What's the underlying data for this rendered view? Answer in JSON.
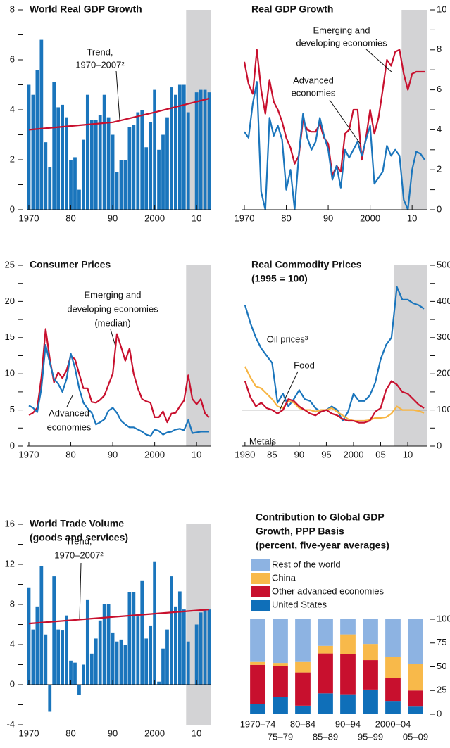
{
  "chart_data": [
    {
      "type": "bar",
      "title": [
        "World Real GDP Growth"
      ],
      "yaxis_side": "left",
      "x": [
        1970,
        1971,
        1972,
        1973,
        1974,
        1975,
        1976,
        1977,
        1978,
        1979,
        1980,
        1981,
        1982,
        1983,
        1984,
        1985,
        1986,
        1987,
        1988,
        1989,
        1990,
        1991,
        1992,
        1993,
        1994,
        1995,
        1996,
        1997,
        1998,
        1999,
        2000,
        2001,
        2002,
        2003,
        2004,
        2005,
        2006,
        2007,
        2008,
        2009,
        2010,
        2011,
        2012,
        2013
      ],
      "values": [
        5.0,
        4.6,
        5.6,
        6.8,
        2.7,
        1.7,
        5.1,
        4.1,
        4.2,
        3.7,
        2.0,
        2.1,
        0.8,
        2.8,
        4.6,
        3.6,
        3.6,
        3.8,
        4.6,
        3.7,
        3.0,
        1.5,
        2.0,
        2.0,
        3.3,
        3.4,
        3.9,
        4.0,
        2.5,
        3.5,
        4.8,
        2.4,
        3.0,
        3.7,
        4.9,
        4.6,
        5.0,
        5.0,
        3.9,
        null,
        4.7,
        4.8,
        4.8,
        4.7
      ],
      "color": "#1a75bc",
      "trend": {
        "x": [
          1970,
          1990,
          2000,
          2013
        ],
        "values": [
          3.2,
          3.5,
          3.9,
          4.45
        ],
        "color": "#c8102e"
      },
      "annotations": [
        [
          "Trend,",
          "1970–2007²"
        ]
      ],
      "shade": [
        2007.5,
        2013.5
      ],
      "shade_color": "#d3d3d5",
      "xlim": [
        1969.5,
        2013.5
      ],
      "xticks": [
        1970,
        {
          "value": 1980,
          "label": "80"
        },
        {
          "value": 1990,
          "label": "90"
        },
        2000,
        {
          "value": 2010,
          "label": "10"
        }
      ],
      "ylim": [
        0,
        8
      ],
      "yticks": [
        0,
        2,
        4,
        6,
        8
      ],
      "yminor": [
        1,
        3,
        5,
        7
      ]
    },
    {
      "type": "line",
      "title": [
        "Real GDP Growth"
      ],
      "yaxis_side": "right",
      "x": [
        1970,
        1971,
        1972,
        1973,
        1974,
        1975,
        1976,
        1977,
        1978,
        1979,
        1980,
        1981,
        1982,
        1983,
        1984,
        1985,
        1986,
        1987,
        1988,
        1989,
        1990,
        1991,
        1992,
        1993,
        1994,
        1995,
        1996,
        1997,
        1998,
        1999,
        2000,
        2001,
        2002,
        2003,
        2004,
        2005,
        2006,
        2007,
        2008,
        2009,
        2010,
        2011,
        2012,
        2013
      ],
      "series": [
        {
          "color": "#c8102e",
          "values": [
            7.4,
            6.3,
            5.8,
            8.0,
            6.0,
            4.8,
            6.5,
            5.4,
            5.0,
            4.4,
            3.6,
            3.1,
            2.3,
            2.7,
            4.5,
            4.0,
            3.9,
            3.9,
            4.3,
            3.6,
            3.3,
            1.7,
            2.2,
            1.9,
            3.8,
            4.0,
            5.0,
            5.0,
            2.5,
            3.6,
            5.0,
            3.8,
            4.6,
            6.0,
            7.5,
            7.2,
            7.9,
            8.0,
            6.8,
            6.0,
            6.8,
            6.9,
            6.9,
            6.9
          ]
        },
        {
          "color": "#1a75bc",
          "values": [
            3.9,
            3.6,
            5.3,
            6.4,
            0.9,
            0.0,
            4.6,
            3.7,
            4.2,
            3.5,
            1.0,
            2.0,
            0.0,
            2.8,
            4.8,
            3.6,
            3.0,
            3.4,
            4.6,
            3.7,
            3.0,
            1.5,
            2.2,
            1.1,
            3.0,
            2.6,
            3.0,
            3.4,
            2.7,
            3.5,
            4.2,
            1.3,
            1.6,
            1.9,
            3.2,
            2.7,
            3.0,
            2.7,
            0.5,
            0.0,
            2.0,
            2.9,
            2.8,
            2.5
          ]
        }
      ],
      "annotations": [
        [
          "Emerging and",
          "developing economies"
        ],
        [
          "Advanced",
          "economies"
        ]
      ],
      "shade": [
        2007.5,
        2013.5
      ],
      "shade_color": "#d3d3d5",
      "xlim": [
        1969.5,
        2013.5
      ],
      "xticks": [
        1970,
        {
          "value": 1980,
          "label": "80"
        },
        {
          "value": 1990,
          "label": "90"
        },
        2000,
        {
          "value": 2010,
          "label": "10"
        }
      ],
      "ylim": [
        0,
        10
      ],
      "yticks": [
        0,
        2,
        4,
        6,
        8,
        10
      ],
      "yminor": [
        1,
        3,
        5,
        7,
        9
      ]
    },
    {
      "type": "line",
      "title": [
        "Consumer Prices"
      ],
      "yaxis_side": "left",
      "x": [
        1970,
        1971,
        1972,
        1973,
        1974,
        1975,
        1976,
        1977,
        1978,
        1979,
        1980,
        1981,
        1982,
        1983,
        1984,
        1985,
        1986,
        1987,
        1988,
        1989,
        1990,
        1991,
        1992,
        1993,
        1994,
        1995,
        1996,
        1997,
        1998,
        1999,
        2000,
        2001,
        2002,
        2003,
        2004,
        2005,
        2006,
        2007,
        2008,
        2009,
        2010,
        2011,
        2012,
        2013
      ],
      "series": [
        {
          "color": "#c8102e",
          "values": [
            4.3,
            4.6,
            5.3,
            9.5,
            16.2,
            12.0,
            8.8,
            10.2,
            9.4,
            10.5,
            12.5,
            12.0,
            10.0,
            8.0,
            8.0,
            6.1,
            6.0,
            6.4,
            7.0,
            8.5,
            10.0,
            15.5,
            13.7,
            11.8,
            13.5,
            10.0,
            8.0,
            6.5,
            6.2,
            6.0,
            4.0,
            4.0,
            4.8,
            3.3,
            4.5,
            4.6,
            5.5,
            6.3,
            9.8,
            6.5,
            5.8,
            6.5,
            4.5,
            4.0
          ]
        },
        {
          "color": "#1a75bc",
          "values": [
            5.6,
            5.3,
            4.7,
            8.0,
            14.0,
            11.5,
            9.3,
            8.6,
            7.5,
            9.3,
            12.8,
            10.8,
            8.0,
            6.0,
            5.2,
            4.6,
            3.0,
            3.3,
            3.7,
            4.9,
            5.3,
            4.6,
            3.5,
            3.0,
            2.6,
            2.6,
            2.3,
            2.0,
            1.6,
            1.4,
            2.3,
            2.1,
            1.6,
            1.9,
            2.0,
            2.3,
            2.4,
            2.2,
            3.6,
            1.8,
            1.9,
            2.0,
            2.0,
            2.0
          ]
        }
      ],
      "annotations": [
        [
          "Emerging and",
          "developing economies",
          "(median)"
        ],
        [
          "Advanced",
          "economies"
        ]
      ],
      "shade": [
        2007.5,
        2013.5
      ],
      "shade_color": "#d3d3d5",
      "xlim": [
        1969.5,
        2013.5
      ],
      "xticks": [
        1970,
        {
          "value": 1980,
          "label": "80"
        },
        {
          "value": 1990,
          "label": "90"
        },
        2000,
        {
          "value": 2010,
          "label": "10"
        }
      ],
      "ylim": [
        0,
        25
      ],
      "yticks": [
        0,
        5,
        10,
        15,
        20,
        25
      ],
      "yminor": [
        2.5,
        7.5,
        12.5,
        17.5,
        22.5
      ]
    },
    {
      "type": "line",
      "title": [
        "Real Commodity Prices",
        "(1995 = 100)"
      ],
      "yaxis_side": "right",
      "x": [
        1980,
        1981,
        1982,
        1983,
        1984,
        1985,
        1986,
        1987,
        1988,
        1989,
        1990,
        1991,
        1992,
        1993,
        1994,
        1995,
        1996,
        1997,
        1998,
        1999,
        2000,
        2001,
        2002,
        2003,
        2004,
        2005,
        2006,
        2007,
        2008,
        2009,
        2010,
        2011,
        2012,
        2013
      ],
      "series": [
        {
          "color": "#1a75bc",
          "values": [
            390,
            340,
            300,
            270,
            250,
            230,
            120,
            145,
            110,
            130,
            155,
            130,
            125,
            105,
            95,
            100,
            110,
            100,
            70,
            95,
            145,
            125,
            125,
            140,
            175,
            240,
            280,
            300,
            440,
            405,
            405,
            395,
            390,
            380
          ]
        },
        {
          "color": "#f7b543",
          "values": [
            220,
            190,
            165,
            160,
            145,
            130,
            110,
            105,
            125,
            120,
            105,
            100,
            100,
            95,
            100,
            100,
            105,
            95,
            85,
            75,
            70,
            70,
            70,
            72,
            78,
            78,
            80,
            90,
            110,
            100,
            100,
            100,
            97,
            92
          ]
        },
        {
          "color": "#c8102e",
          "values": [
            180,
            135,
            110,
            120,
            105,
            100,
            90,
            100,
            130,
            125,
            110,
            100,
            90,
            85,
            95,
            100,
            90,
            85,
            75,
            70,
            70,
            65,
            65,
            70,
            95,
            105,
            155,
            180,
            170,
            150,
            145,
            130,
            115,
            105
          ]
        }
      ],
      "hline": 100,
      "annotations": [
        [
          "Oil prices³"
        ],
        [
          "Food"
        ],
        [
          "Metals"
        ]
      ],
      "shade": [
        2007.5,
        2013.5
      ],
      "shade_color": "#d3d3d5",
      "xlim": [
        1979.5,
        2013.5
      ],
      "xticks": [
        1980,
        {
          "value": 1985,
          "label": "85"
        },
        {
          "value": 1990,
          "label": "90"
        },
        {
          "value": 1995,
          "label": "95"
        },
        2000,
        {
          "value": 2005,
          "label": "05"
        },
        {
          "value": 2010,
          "label": "10"
        }
      ],
      "ylim": [
        0,
        500
      ],
      "yticks": [
        0,
        100,
        200,
        300,
        400,
        500
      ],
      "yminor": [
        50,
        150,
        250,
        350,
        450
      ]
    },
    {
      "type": "bar",
      "title": [
        "World Trade Volume",
        "(goods and services)"
      ],
      "yaxis_side": "left",
      "x": [
        1970,
        1971,
        1972,
        1973,
        1974,
        1975,
        1976,
        1977,
        1978,
        1979,
        1980,
        1981,
        1982,
        1983,
        1984,
        1985,
        1986,
        1987,
        1988,
        1989,
        1990,
        1991,
        1992,
        1993,
        1994,
        1995,
        1996,
        1997,
        1998,
        1999,
        2000,
        2001,
        2002,
        2003,
        2004,
        2005,
        2006,
        2007,
        2008,
        2009,
        2010,
        2011,
        2012,
        2013
      ],
      "values": [
        9.7,
        5.5,
        7.8,
        11.8,
        5.0,
        -2.7,
        10.8,
        5.5,
        5.4,
        6.9,
        2.4,
        2.2,
        -1.0,
        2.0,
        8.5,
        3.1,
        4.6,
        6.4,
        8.0,
        8.0,
        5.2,
        4.3,
        4.5,
        4.0,
        9.2,
        9.2,
        6.8,
        10.4,
        4.6,
        5.9,
        12.3,
        0.3,
        3.6,
        5.5,
        10.8,
        7.8,
        9.3,
        7.5,
        4.3,
        null,
        6.0,
        7.2,
        7.4,
        7.5
      ],
      "color": "#1a75bc",
      "trend": {
        "x": [
          1970,
          2013
        ],
        "values": [
          6.1,
          7.5
        ],
        "color": "#c8102e"
      },
      "annotations": [
        [
          "Trend,",
          "1970–2007²"
        ]
      ],
      "shade": [
        2007.5,
        2013.5
      ],
      "shade_color": "#d3d3d5",
      "xlim": [
        1969.5,
        2013.5
      ],
      "xticks": [
        1970,
        {
          "value": 1980,
          "label": "80"
        },
        {
          "value": 1990,
          "label": "90"
        },
        2000,
        {
          "value": 2010,
          "label": "10"
        }
      ],
      "ylim": [
        -4,
        16
      ],
      "yticks": [
        -4,
        0,
        4,
        8,
        12,
        16
      ],
      "yminor": [
        -2,
        2,
        6,
        10,
        14
      ]
    },
    {
      "type": "stacked_bar",
      "title": [
        "Contribution to Global GDP",
        "Growth, PPP Basis",
        "(percent, five-year averages)"
      ],
      "yaxis_side": "right",
      "categories": [
        "1970–74",
        "75–79",
        "80–84",
        "85–89",
        "90–94",
        "95–99",
        "2000–04",
        "05–09"
      ],
      "series": [
        {
          "name": "United States",
          "color": "#0f6fb9",
          "values": [
            11,
            18,
            9,
            22,
            21,
            26,
            14,
            8
          ]
        },
        {
          "name": "Other advanced economies",
          "color": "#c8102e",
          "values": [
            41,
            33,
            35,
            42,
            42,
            31,
            24,
            17
          ]
        },
        {
          "name": "China",
          "color": "#f8b94a",
          "values": [
            3,
            3,
            11,
            8,
            21,
            17,
            22,
            28
          ]
        },
        {
          "name": "Rest of the world",
          "color": "#8db3e2",
          "values": [
            45,
            46,
            45,
            28,
            16,
            26,
            40,
            47
          ]
        }
      ],
      "ylim": [
        0,
        100
      ],
      "yticks": [
        0,
        25,
        50,
        75,
        100
      ]
    }
  ]
}
